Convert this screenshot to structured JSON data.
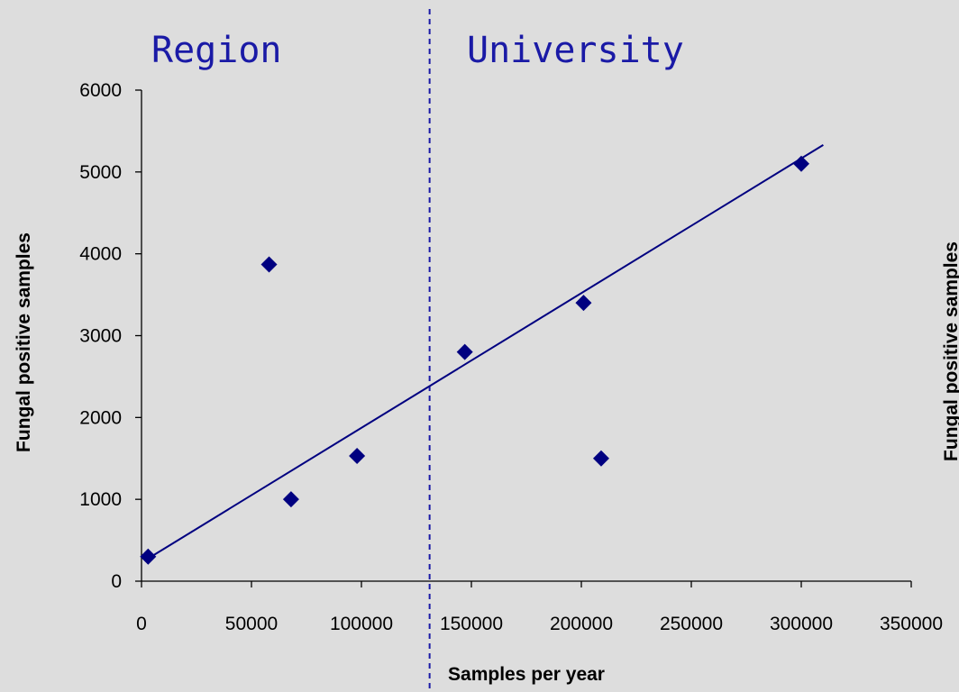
{
  "chart_data": {
    "type": "scatter",
    "title": "",
    "xlabel": "Samples per year",
    "ylabel": "Fungal positive samples",
    "xlim": [
      0,
      350000
    ],
    "ylim": [
      0,
      6000
    ],
    "x_ticks": [
      "0",
      "50000",
      "100000",
      "150000",
      "200000",
      "250000",
      "300000",
      "350000"
    ],
    "y_ticks": [
      "0",
      "1000",
      "2000",
      "3000",
      "4000",
      "5000",
      "6000"
    ],
    "grid": false,
    "legend": "none",
    "series": [
      {
        "points": [
          {
            "x": 3000,
            "y": 300
          },
          {
            "x": 58000,
            "y": 3870
          },
          {
            "x": 68000,
            "y": 1000
          },
          {
            "x": 98000,
            "y": 1530
          },
          {
            "x": 147000,
            "y": 2800
          },
          {
            "x": 201000,
            "y": 3400
          },
          {
            "x": 209000,
            "y": 1500
          },
          {
            "x": 300000,
            "y": 5100
          }
        ]
      }
    ],
    "trendline": {
      "x": [
        5000,
        310000
      ],
      "y": [
        310,
        5330
      ]
    },
    "divider_x": 131000,
    "region_labels": {
      "left": "Region",
      "right": "University"
    },
    "second_ylabel": "Fungal positive samples",
    "colors": {
      "marker": "#000080",
      "trendline": "#000080",
      "divider": "#1a1aa6",
      "region_text": "#1a1aa6",
      "background": "#dddddd"
    }
  }
}
